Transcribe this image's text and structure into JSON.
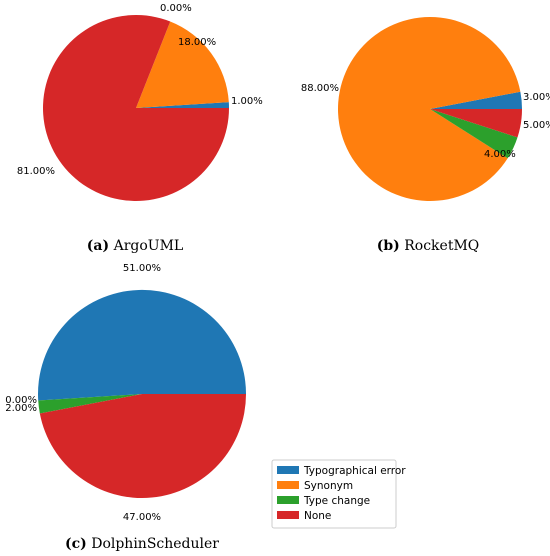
{
  "legend": {
    "entries": [
      {
        "label": "Typographical error",
        "color": "#1f77b4"
      },
      {
        "label": "Synonym",
        "color": "#ff7f0e"
      },
      {
        "label": "Type change",
        "color": "#2ca02c"
      },
      {
        "label": "None",
        "color": "#d62728"
      }
    ]
  },
  "chart_data": [
    {
      "type": "pie",
      "caption_letter": "(a)",
      "caption_text": "ArgoUML",
      "categories": [
        "Typographical error",
        "Synonym",
        "Type change",
        "None"
      ],
      "values": [
        1,
        18,
        0,
        81
      ],
      "labels": [
        "1.00%",
        "18.00%",
        "0.00%",
        "81.00%"
      ]
    },
    {
      "type": "pie",
      "caption_letter": "(b)",
      "caption_text": "RocketMQ",
      "categories": [
        "Typographical error",
        "Synonym",
        "Type change",
        "None"
      ],
      "values": [
        3,
        88,
        4,
        5
      ],
      "labels": [
        "3.00%",
        "88.00%",
        "4.00%",
        "5.00%"
      ]
    },
    {
      "type": "pie",
      "caption_letter": "(c)",
      "caption_text": "DolphinScheduler",
      "categories": [
        "Typographical error",
        "Synonym",
        "Type change",
        "None"
      ],
      "values": [
        51,
        0,
        2,
        47
      ],
      "labels": [
        "51.00%",
        "0.00%",
        "2.00%",
        "47.00%"
      ]
    }
  ]
}
